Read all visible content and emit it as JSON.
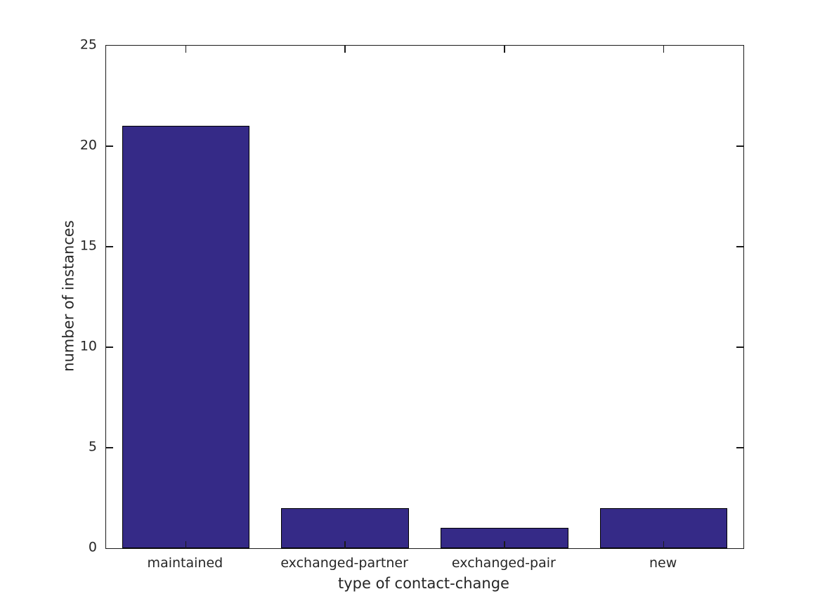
{
  "figure": {
    "background_color": "#ffffff",
    "axis_line_color": "#1a1a1a",
    "text_color": "#262626"
  },
  "chart_data": {
    "type": "bar",
    "categories": [
      "maintained",
      "exchanged-partner",
      "exchanged-pair",
      "new"
    ],
    "values": [
      21,
      2,
      1,
      2
    ],
    "title": "",
    "xlabel": "type of contact-change",
    "ylabel": "number of instances",
    "ylim": [
      0,
      25
    ],
    "yticks": [
      0,
      5,
      10,
      15,
      20,
      25
    ],
    "bar_color": "#352A87",
    "bar_edge_color": "#000000",
    "bar_width_fraction": 0.8,
    "grid": false,
    "legend": null,
    "tick_direction": "in",
    "box": true
  }
}
